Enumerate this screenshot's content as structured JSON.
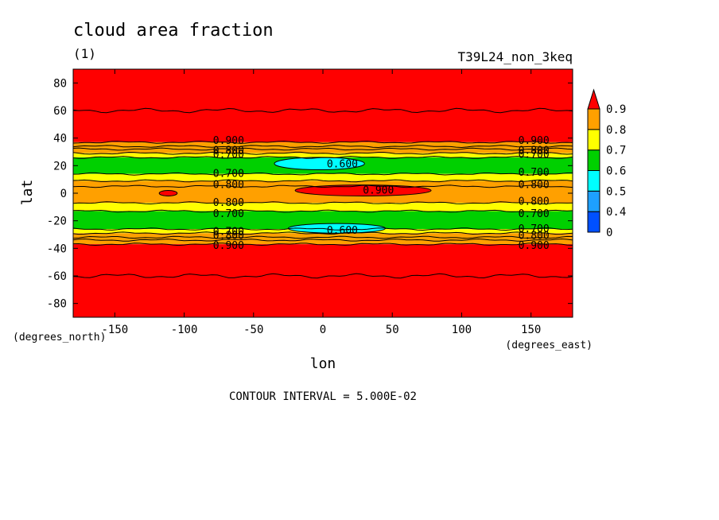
{
  "chart_data": {
    "type": "contour",
    "title": "cloud area fraction",
    "subtitle": "(1)",
    "run_label": "T39L24_non_3keq",
    "xlabel": "lon",
    "ylabel": "lat",
    "x_unit": "(degrees_east)",
    "y_unit": "(degrees_north)",
    "xlim": [
      -180,
      180
    ],
    "ylim": [
      -90,
      90
    ],
    "x_ticks": [
      -150,
      -100,
      -50,
      0,
      50,
      100,
      150
    ],
    "x_tick_labels": [
      "-150",
      "-100",
      "-50",
      "0",
      "50",
      "100",
      "150"
    ],
    "y_ticks": [
      80,
      60,
      40,
      20,
      0,
      -20,
      -40,
      -60,
      -80
    ],
    "y_tick_labels": [
      "80",
      "60",
      "40",
      "20",
      "0",
      "-20",
      "-40",
      "-60",
      "-80"
    ],
    "contour_interval_text": "CONTOUR INTERVAL = 5.000E-02",
    "colorbar": {
      "levels": [
        0,
        0.4,
        0.5,
        0.6,
        0.7,
        0.8,
        0.9
      ],
      "labels": [
        "0",
        "0.4",
        "0.5",
        "0.6",
        "0.7",
        "0.8",
        "0.9"
      ],
      "colors": [
        "#0050ff",
        "#1ea0ff",
        "#00ffff",
        "#00d000",
        "#ffff00",
        "#ffa000",
        "#ff0000"
      ]
    },
    "zonal_bands": [
      {
        "lat_from": 90,
        "lat_to": 37,
        "value": 0.95
      },
      {
        "lat_from": 37,
        "lat_to": 29,
        "value": 0.85
      },
      {
        "lat_from": 29,
        "lat_to": 26,
        "value": 0.75
      },
      {
        "lat_from": 26,
        "lat_to": 14,
        "value": 0.65
      },
      {
        "lat_from": 14,
        "lat_to": 9,
        "value": 0.75
      },
      {
        "lat_from": 9,
        "lat_to": -7,
        "value": 0.85
      },
      {
        "lat_from": -7,
        "lat_to": -13,
        "value": 0.75
      },
      {
        "lat_from": -13,
        "lat_to": -26,
        "value": 0.65
      },
      {
        "lat_from": -26,
        "lat_to": -29,
        "value": 0.75
      },
      {
        "lat_from": -29,
        "lat_to": -37,
        "value": 0.85
      },
      {
        "lat_from": -37,
        "lat_to": -90,
        "value": 0.95
      }
    ],
    "contour_lines_lat": [
      60,
      37,
      34,
      32,
      29,
      26,
      14,
      9,
      5,
      -7,
      -13,
      -26,
      -29,
      -32,
      -34,
      -37,
      -60
    ],
    "anomalies": [
      {
        "name": "equatorial-max",
        "value": 0.95,
        "lon_min": -20,
        "lon_max": 78,
        "lat_min": -2,
        "lat_max": 6
      },
      {
        "name": "equatorial-spot",
        "value": 0.95,
        "lon_min": -118,
        "lon_max": -105,
        "lat_min": -2,
        "lat_max": 2
      },
      {
        "name": "north-min",
        "value": 0.55,
        "lon_min": -35,
        "lon_max": 30,
        "lat_min": 17,
        "lat_max": 26
      },
      {
        "name": "south-min",
        "value": 0.55,
        "lon_min": -25,
        "lon_max": 45,
        "lat_min": -29,
        "lat_max": -22
      }
    ],
    "contour_labels": [
      {
        "text": "0.900",
        "lon": -68,
        "lat": 38
      },
      {
        "text": "0.800",
        "lon": -68,
        "lat": 31
      },
      {
        "text": "0.700",
        "lon": -68,
        "lat": 28
      },
      {
        "text": "0.700",
        "lon": -68,
        "lat": 14
      },
      {
        "text": "0.800",
        "lon": -68,
        "lat": 6
      },
      {
        "text": "0.800",
        "lon": -68,
        "lat": -7
      },
      {
        "text": "0.700",
        "lon": -68,
        "lat": -15
      },
      {
        "text": "0.700",
        "lon": -68,
        "lat": -28
      },
      {
        "text": "0.800",
        "lon": -68,
        "lat": -31
      },
      {
        "text": "0.900",
        "lon": -68,
        "lat": -38
      },
      {
        "text": "0.900",
        "lon": 152,
        "lat": 38
      },
      {
        "text": "0.800",
        "lon": 152,
        "lat": 31
      },
      {
        "text": "0.700",
        "lon": 152,
        "lat": 28
      },
      {
        "text": "0.700",
        "lon": 152,
        "lat": 15
      },
      {
        "text": "0.800",
        "lon": 152,
        "lat": 6
      },
      {
        "text": "0.800",
        "lon": 152,
        "lat": -6
      },
      {
        "text": "0.700",
        "lon": 152,
        "lat": -15
      },
      {
        "text": "0.700",
        "lon": 152,
        "lat": -26
      },
      {
        "text": "0.800",
        "lon": 152,
        "lat": -31
      },
      {
        "text": "0.900",
        "lon": 152,
        "lat": -38
      },
      {
        "text": "0.600",
        "lon": 14,
        "lat": 21
      },
      {
        "text": "0.900",
        "lon": 40,
        "lat": 2
      },
      {
        "text": "0.600",
        "lon": 14,
        "lat": -27
      }
    ]
  }
}
